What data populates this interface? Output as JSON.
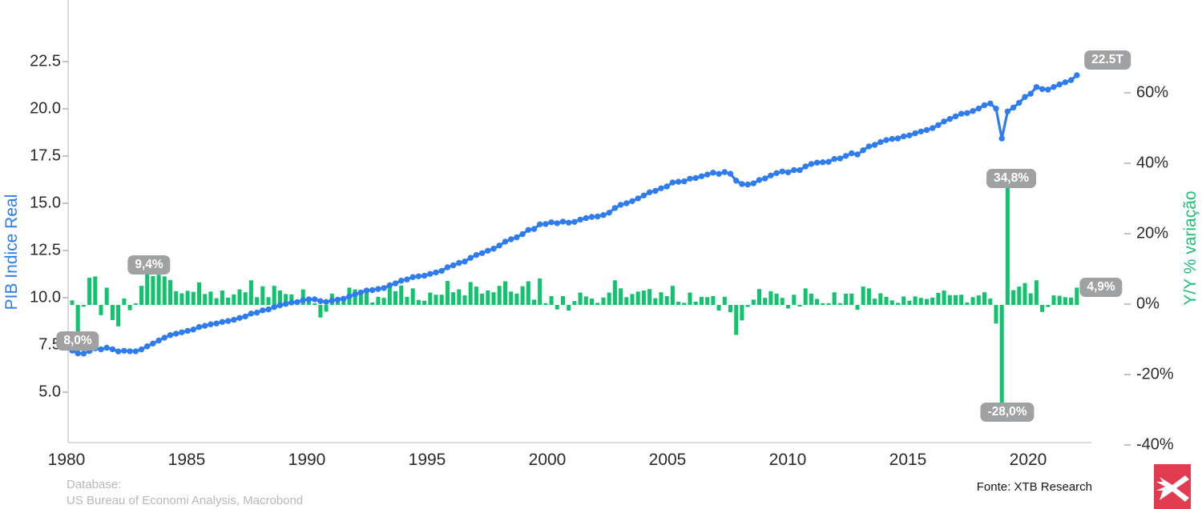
{
  "chart": {
    "left_axis": {
      "label": "PIB Indice Real",
      "ticks": [
        "22.5",
        "20.0",
        "17.5",
        "15.0",
        "12.5",
        "10.0",
        "7.5",
        "5.0"
      ]
    },
    "right_axis": {
      "label": "Y/Y % variação",
      "ticks": [
        "60%",
        "40%",
        "20%",
        "0%",
        "-20%",
        "-40%"
      ]
    },
    "x_axis": {
      "ticks": [
        "1980",
        "1985",
        "1990",
        "1995",
        "2000",
        "2005",
        "2010",
        "2015",
        "2020"
      ]
    },
    "annotations": {
      "drop_1980": "8,0%",
      "peak_1983": "9,4%",
      "covid_rebound": "34,8%",
      "covid_drop": "-28,0%",
      "latest_growth": "4,9%",
      "latest_level": "22.5T"
    }
  },
  "chart_data": {
    "type": "line+bar",
    "frequency": "quarterly",
    "x_start": "1980Q1",
    "x_end": "2023Q3",
    "series": [
      {
        "name": "Y/Y % variação",
        "type": "bar",
        "axis": "right",
        "unit": "%",
        "color": "#10c36d",
        "values": [
          1.3,
          -8.0,
          -0.5,
          7.7,
          8.1,
          -2.9,
          4.9,
          -4.3,
          -6.1,
          1.8,
          -1.5,
          0.2,
          5.4,
          9.4,
          8.2,
          8.6,
          8.1,
          7.1,
          3.9,
          3.3,
          4.0,
          3.7,
          6.4,
          3.1,
          3.8,
          1.9,
          4.1,
          2.1,
          3.0,
          4.4,
          3.6,
          7.0,
          2.2,
          5.3,
          2.2,
          5.4,
          4.1,
          3.1,
          3.0,
          0.9,
          4.4,
          1.5,
          0.1,
          -3.6,
          -1.9,
          3.2,
          1.9,
          1.9,
          4.9,
          4.4,
          4.1,
          4.2,
          0.7,
          2.3,
          2.0,
          5.5,
          3.9,
          5.5,
          2.3,
          4.7,
          1.4,
          1.2,
          3.5,
          2.9,
          2.9,
          6.8,
          3.6,
          4.4,
          2.7,
          6.5,
          5.2,
          3.2,
          4.1,
          3.6,
          5.4,
          6.7,
          3.8,
          3.2,
          5.3,
          6.7,
          1.5,
          7.5,
          0.5,
          2.5,
          -1.3,
          2.5,
          -1.6,
          1.1,
          3.5,
          2.4,
          1.8,
          0.6,
          2.1,
          3.5,
          7.0,
          4.7,
          2.2,
          3.1,
          3.8,
          4.1,
          4.5,
          1.9,
          3.6,
          2.5,
          5.4,
          0.9,
          0.6,
          3.5,
          0.9,
          2.3,
          2.2,
          2.5,
          -1.6,
          2.3,
          -2.1,
          -8.5,
          -4.4,
          -0.6,
          1.5,
          4.5,
          2.0,
          3.9,
          3.2,
          2.0,
          -1.0,
          2.9,
          -0.1,
          4.7,
          3.2,
          1.7,
          0.5,
          0.5,
          3.6,
          0.5,
          3.2,
          3.2,
          -1.4,
          5.2,
          4.7,
          1.8,
          3.3,
          2.3,
          1.3,
          0.6,
          2.4,
          1.2,
          2.4,
          2.0,
          1.7,
          2.1,
          3.4,
          4.1,
          2.8,
          2.8,
          2.9,
          0.7,
          2.2,
          2.7,
          3.6,
          1.8,
          -5.3,
          -28.0,
          34.8,
          4.2,
          5.2,
          6.2,
          3.3,
          7.0,
          -2.0,
          -0.6,
          2.7,
          2.6,
          2.2,
          2.1,
          4.9
        ]
      },
      {
        "name": "PIB Indice Real",
        "type": "line",
        "axis": "left",
        "unit": "T",
        "color": "#2e7cf0",
        "start_level": 7.18,
        "derivation": "level compounded quarterly from the annualized growth series",
        "end_level": 22.5
      }
    ],
    "title": "",
    "xlabel": "",
    "ylabel_left": "PIB Indice Real",
    "ylabel_right": "Y/Y % variação",
    "ylim_left": [
      5.0,
      22.5
    ],
    "ylim_right": [
      -40,
      60
    ],
    "grid": false,
    "legend_position": "none"
  },
  "footer": {
    "database_label": "Database:",
    "database_source": "US Bureau of Economi Analysis, Macrobond",
    "fonte": "Fonte: XTB Research"
  },
  "colors": {
    "line_blue": "#2e7cf0",
    "bar_green": "#10c36d",
    "right_label_green": "#1cc176",
    "left_label_blue": "#2b7bf2",
    "badge_gray": "#a0a1a2",
    "axis_line": "#cfcfcf",
    "logo_red": "#e23a4f"
  }
}
